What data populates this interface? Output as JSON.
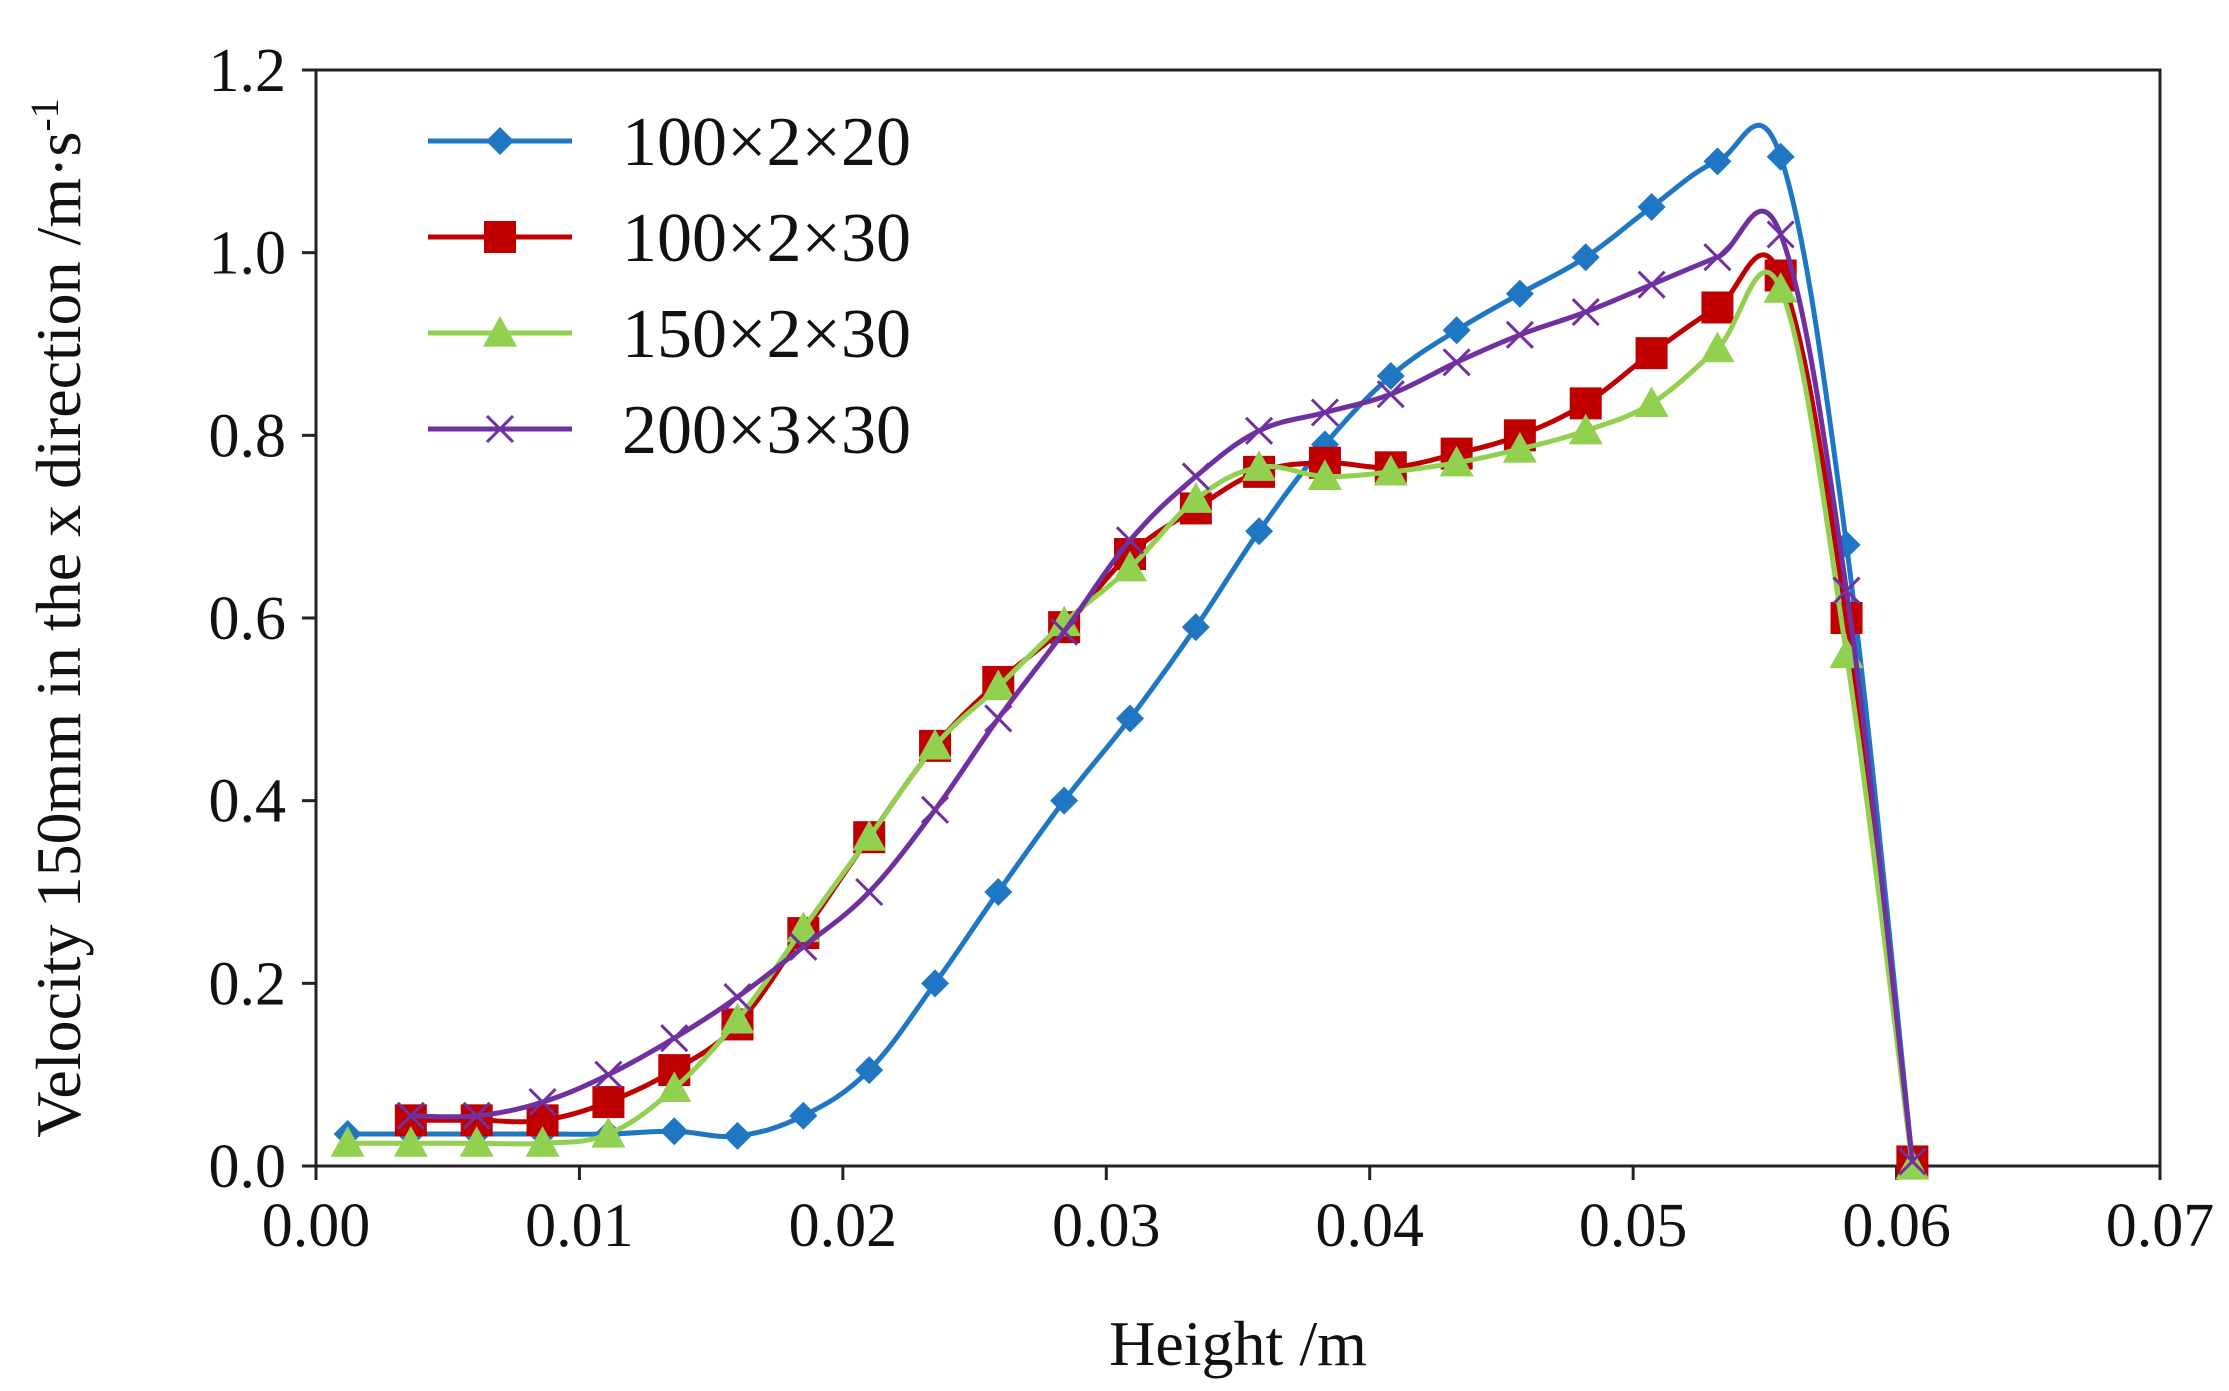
{
  "chart_data": {
    "type": "line",
    "title": "",
    "xlabel": "Height /m",
    "ylabel": "Velocity 150mm in the x direction /m·s",
    "ylabel_superscript": "-1",
    "xlim": [
      0.0,
      0.07
    ],
    "ylim": [
      0.0,
      1.2
    ],
    "xticks": [
      0.0,
      0.01,
      0.02,
      0.03,
      0.04,
      0.05,
      0.06,
      0.07
    ],
    "yticks": [
      0.0,
      0.2,
      0.4,
      0.6,
      0.8,
      1.0,
      1.2
    ],
    "xtick_labels": [
      "0.00",
      "0.01",
      "0.02",
      "0.03",
      "0.04",
      "0.05",
      "0.06",
      "0.07"
    ],
    "ytick_labels": [
      "0.0",
      "0.2",
      "0.4",
      "0.6",
      "0.8",
      "1.0",
      "1.2"
    ],
    "grid": false,
    "legend_position": "top-left",
    "series": [
      {
        "name": "100×2×20",
        "color": "#1f77c4",
        "marker": "diamond",
        "x": [
          0.0012,
          0.0036,
          0.0061,
          0.0086,
          0.0111,
          0.0136,
          0.016,
          0.0185,
          0.021,
          0.0235,
          0.0259,
          0.0284,
          0.0309,
          0.0334,
          0.0358,
          0.0383,
          0.0408,
          0.0433,
          0.0457,
          0.0482,
          0.0507,
          0.0532,
          0.0556,
          0.0581,
          0.0606
        ],
        "y": [
          0.035,
          0.035,
          0.035,
          0.035,
          0.035,
          0.038,
          0.033,
          0.055,
          0.105,
          0.2,
          0.3,
          0.4,
          0.49,
          0.59,
          0.695,
          0.79,
          0.865,
          0.915,
          0.955,
          0.995,
          1.05,
          1.1,
          1.105,
          0.68,
          0.005
        ]
      },
      {
        "name": "100×2×30",
        "color": "#c00000",
        "marker": "square",
        "x": [
          0.0036,
          0.0061,
          0.0086,
          0.0111,
          0.0136,
          0.016,
          0.0185,
          0.021,
          0.0235,
          0.0259,
          0.0284,
          0.0309,
          0.0334,
          0.0358,
          0.0383,
          0.0408,
          0.0433,
          0.0457,
          0.0482,
          0.0507,
          0.0532,
          0.0556,
          0.0581,
          0.0606
        ],
        "y": [
          0.05,
          0.05,
          0.05,
          0.07,
          0.105,
          0.155,
          0.255,
          0.36,
          0.46,
          0.53,
          0.59,
          0.67,
          0.72,
          0.76,
          0.77,
          0.765,
          0.78,
          0.8,
          0.835,
          0.89,
          0.94,
          0.975,
          0.6,
          0.005
        ]
      },
      {
        "name": "150×2×30",
        "color": "#92d050",
        "marker": "triangle",
        "x": [
          0.0012,
          0.0036,
          0.0061,
          0.0086,
          0.0111,
          0.0136,
          0.016,
          0.0185,
          0.021,
          0.0235,
          0.0259,
          0.0284,
          0.0309,
          0.0334,
          0.0358,
          0.0383,
          0.0408,
          0.0433,
          0.0457,
          0.0482,
          0.0507,
          0.0532,
          0.0556,
          0.0581,
          0.0606
        ],
        "y": [
          0.025,
          0.025,
          0.025,
          0.025,
          0.035,
          0.085,
          0.16,
          0.26,
          0.36,
          0.46,
          0.525,
          0.595,
          0.655,
          0.73,
          0.765,
          0.755,
          0.76,
          0.77,
          0.785,
          0.805,
          0.835,
          0.895,
          0.96,
          0.56,
          0.0
        ]
      },
      {
        "name": "200×3×30",
        "color": "#7030a0",
        "marker": "x",
        "x": [
          0.0036,
          0.0061,
          0.0086,
          0.0111,
          0.0136,
          0.016,
          0.0185,
          0.021,
          0.0235,
          0.0259,
          0.0284,
          0.0309,
          0.0334,
          0.0358,
          0.0383,
          0.0408,
          0.0433,
          0.0457,
          0.0482,
          0.0507,
          0.0532,
          0.0556,
          0.0581,
          0.0606
        ],
        "y": [
          0.055,
          0.055,
          0.07,
          0.1,
          0.14,
          0.185,
          0.24,
          0.3,
          0.39,
          0.49,
          0.585,
          0.685,
          0.755,
          0.805,
          0.825,
          0.845,
          0.88,
          0.91,
          0.935,
          0.965,
          0.995,
          1.02,
          0.63,
          0.005
        ]
      }
    ]
  }
}
